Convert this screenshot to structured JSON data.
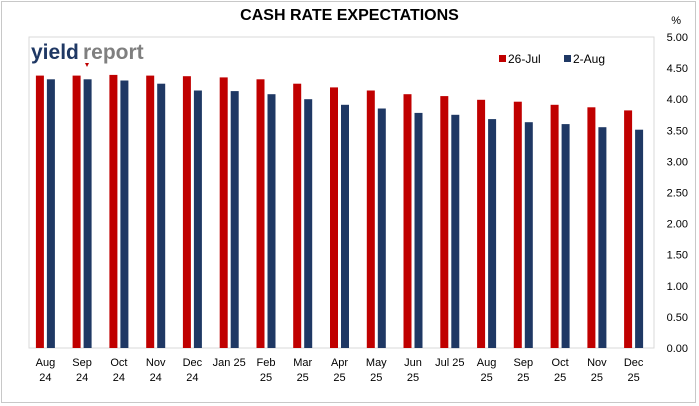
{
  "chart_data": {
    "type": "bar",
    "title": "CASH RATE EXPECTATIONS",
    "y_unit": "%",
    "categories": [
      [
        "Aug",
        "24"
      ],
      [
        "Sep",
        "24"
      ],
      [
        "Oct",
        "24"
      ],
      [
        "Nov",
        "24"
      ],
      [
        "Dec",
        "24"
      ],
      [
        "Jan 25"
      ],
      [
        "Feb",
        "25"
      ],
      [
        "Mar",
        "25"
      ],
      [
        "Apr",
        "25"
      ],
      [
        "May",
        "25"
      ],
      [
        "Jun",
        "25"
      ],
      [
        "Jul 25"
      ],
      [
        "Aug",
        "25"
      ],
      [
        "Sep",
        "25"
      ],
      [
        "Oct",
        "25"
      ],
      [
        "Nov",
        "25"
      ],
      [
        "Dec",
        "25"
      ]
    ],
    "series": [
      {
        "name": "26-Jul",
        "color": "#c00000",
        "values": [
          4.38,
          4.38,
          4.39,
          4.38,
          4.37,
          4.35,
          4.32,
          4.25,
          4.19,
          4.14,
          4.08,
          4.05,
          3.99,
          3.96,
          3.91,
          3.87,
          3.82
        ]
      },
      {
        "name": "2-Aug",
        "color": "#1f3864",
        "values": [
          4.32,
          4.32,
          4.3,
          4.25,
          4.14,
          4.13,
          4.08,
          4.0,
          3.91,
          3.85,
          3.78,
          3.75,
          3.68,
          3.63,
          3.6,
          3.55,
          3.51
        ]
      }
    ],
    "ylim": [
      0,
      5
    ],
    "yticks": [
      "0.00",
      "0.50",
      "1.00",
      "1.50",
      "2.00",
      "2.50",
      "3.00",
      "3.50",
      "4.00",
      "4.50",
      "5.00"
    ],
    "y_axis_side": "right",
    "grid": false,
    "legend_position": "top-right"
  },
  "logo": {
    "part1": "yield",
    "part2": "report",
    "colors": {
      "part1": "#1f3864",
      "part2": "#7f7f7f",
      "marker": "#c00000"
    }
  }
}
